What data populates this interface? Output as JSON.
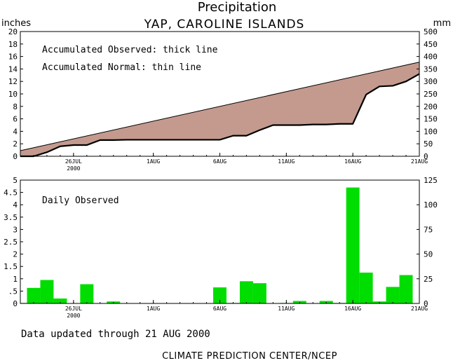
{
  "title": "Precipitation",
  "subtitle": "YAP, CAROLINE ISLANDS",
  "footer_updated": "Data updated through 21 AUG 2000",
  "footer_source": "CLIMATE PREDICTION CENTER/NCEP",
  "colors": {
    "normal_fill": "#c49a8e",
    "daily_bar": "#00dd00"
  },
  "chart_data": [
    {
      "type": "area",
      "left_label": "inches",
      "right_label": "mm",
      "legend_line1": "Accumulated Observed: thick line",
      "legend_line2": "Accumulated Normal: thin line",
      "x_start": "2000-07-22",
      "x_end": "2000-08-21",
      "x_ticks": [
        {
          "date": "2000-07-26",
          "label": "26JUL",
          "sub": "2000"
        },
        {
          "date": "2000-08-01",
          "label": "1AUG"
        },
        {
          "date": "2000-08-06",
          "label": "6AUG"
        },
        {
          "date": "2000-08-11",
          "label": "11AUG"
        },
        {
          "date": "2000-08-16",
          "label": "16AUG"
        },
        {
          "date": "2000-08-21",
          "label": "21AUG"
        }
      ],
      "ylim": [
        0,
        20
      ],
      "y_ticks": [
        0,
        2,
        4,
        6,
        8,
        10,
        12,
        14,
        16,
        18,
        20
      ],
      "y2lim": [
        0,
        500
      ],
      "y2_ticks": [
        0,
        50,
        100,
        150,
        200,
        250,
        300,
        350,
        400,
        450,
        500
      ],
      "normal": {
        "x": [
          "2000-07-22",
          "2000-08-21"
        ],
        "y": [
          0.9,
          15.1
        ]
      },
      "observed": {
        "x": [
          "2000-07-22",
          "2000-07-23",
          "2000-07-24",
          "2000-07-25",
          "2000-07-26",
          "2000-07-27",
          "2000-07-28",
          "2000-07-29",
          "2000-07-30",
          "2000-07-31",
          "2000-08-01",
          "2000-08-02",
          "2000-08-03",
          "2000-08-04",
          "2000-08-05",
          "2000-08-06",
          "2000-08-07",
          "2000-08-08",
          "2000-08-09",
          "2000-08-10",
          "2000-08-11",
          "2000-08-12",
          "2000-08-13",
          "2000-08-14",
          "2000-08-15",
          "2000-08-16",
          "2000-08-17",
          "2000-08-18",
          "2000-08-19",
          "2000-08-20",
          "2000-08-21"
        ],
        "y": [
          0.0,
          0.0,
          0.65,
          1.6,
          1.8,
          1.8,
          2.6,
          2.6,
          2.65,
          2.65,
          2.65,
          2.65,
          2.65,
          2.65,
          2.65,
          2.65,
          3.3,
          3.3,
          4.2,
          5.0,
          5.0,
          5.0,
          5.1,
          5.1,
          5.2,
          5.2,
          9.9,
          11.2,
          11.3,
          12.0,
          13.2
        ]
      }
    },
    {
      "type": "bar",
      "title": "Daily Observed",
      "ylim": [
        0,
        5
      ],
      "y_ticks": [
        0,
        0.5,
        1,
        1.5,
        2,
        2.5,
        3,
        3.5,
        4,
        4.5,
        5
      ],
      "y_tick_labels": [
        "0",
        ".5",
        "1",
        "1.5",
        "2",
        "2.5",
        "3",
        "3.5",
        "4",
        "4.5",
        "5"
      ],
      "y2lim": [
        0,
        125
      ],
      "y2_ticks": [
        0,
        25,
        50,
        75,
        100,
        125
      ],
      "x": [
        "2000-07-22",
        "2000-07-23",
        "2000-07-24",
        "2000-07-25",
        "2000-07-26",
        "2000-07-27",
        "2000-07-28",
        "2000-07-29",
        "2000-07-30",
        "2000-07-31",
        "2000-08-01",
        "2000-08-02",
        "2000-08-03",
        "2000-08-04",
        "2000-08-05",
        "2000-08-06",
        "2000-08-07",
        "2000-08-08",
        "2000-08-09",
        "2000-08-10",
        "2000-08-11",
        "2000-08-12",
        "2000-08-13",
        "2000-08-14",
        "2000-08-15",
        "2000-08-16",
        "2000-08-17",
        "2000-08-18",
        "2000-08-19",
        "2000-08-20",
        "2000-08-21"
      ],
      "values": [
        0.02,
        0.63,
        0.95,
        0.2,
        0.0,
        0.78,
        0.0,
        0.08,
        0.0,
        0.0,
        0.0,
        0.0,
        0.0,
        0.0,
        0.0,
        0.65,
        0.02,
        0.9,
        0.82,
        0.0,
        0.02,
        0.1,
        0.0,
        0.1,
        0.02,
        4.7,
        1.25,
        0.08,
        0.67,
        1.15,
        0.0
      ]
    }
  ]
}
